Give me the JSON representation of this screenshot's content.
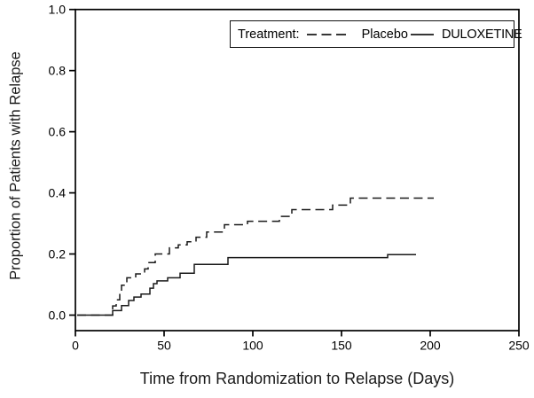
{
  "figure": {
    "background": "#ffffff",
    "axis_color": "#000000",
    "curve_color": "#1a1a1a"
  },
  "legend": {
    "label": "Treatment:",
    "items": [
      {
        "name": "Placebo",
        "line_style": "dashed"
      },
      {
        "name": "DULOXETINE",
        "line_style": "solid"
      }
    ]
  },
  "chart_data": {
    "type": "line",
    "subtype": "kaplan-meier-step",
    "title": "",
    "xlabel": "Time from Randomization to Relapse (Days)",
    "ylabel": "Proportion of Patients with Relapse",
    "xlim": [
      0,
      250
    ],
    "ylim": [
      0.0,
      1.0
    ],
    "xticks": [
      "0",
      "50",
      "100",
      "150",
      "200",
      "250"
    ],
    "yticks": [
      "0.0",
      "0.2",
      "0.4",
      "0.6",
      "0.8",
      "1.0"
    ],
    "grid": false,
    "legend_position": "inside-top-right",
    "series": [
      {
        "name": "Placebo",
        "style": "dashed",
        "color": "#1a1a1a",
        "steps": [
          [
            1,
            0
          ],
          [
            21,
            0.03
          ],
          [
            23,
            0.05
          ],
          [
            25,
            0.075
          ],
          [
            26,
            0.098
          ],
          [
            29,
            0.122
          ],
          [
            34,
            0.135
          ],
          [
            39,
            0.151
          ],
          [
            41,
            0.172
          ],
          [
            45,
            0.2
          ],
          [
            53,
            0.22
          ],
          [
            58,
            0.23
          ],
          [
            63,
            0.24
          ],
          [
            68,
            0.255
          ],
          [
            74,
            0.272
          ],
          [
            84,
            0.296
          ],
          [
            97,
            0.307
          ],
          [
            115,
            0.323
          ],
          [
            122,
            0.345
          ],
          [
            145,
            0.36
          ],
          [
            155,
            0.383
          ]
        ],
        "end_day": 202,
        "final_value": 0.383
      },
      {
        "name": "DULOXETINE",
        "style": "solid",
        "color": "#1a1a1a",
        "steps": [
          [
            1,
            0
          ],
          [
            21,
            0.015
          ],
          [
            26,
            0.031
          ],
          [
            30,
            0.048
          ],
          [
            33,
            0.059
          ],
          [
            37,
            0.069
          ],
          [
            42,
            0.088
          ],
          [
            44,
            0.103
          ],
          [
            46,
            0.112
          ],
          [
            52,
            0.122
          ],
          [
            59,
            0.137
          ],
          [
            67,
            0.166
          ],
          [
            86,
            0.188
          ],
          [
            176,
            0.198
          ]
        ],
        "end_day": 192,
        "final_value": 0.198
      }
    ]
  }
}
